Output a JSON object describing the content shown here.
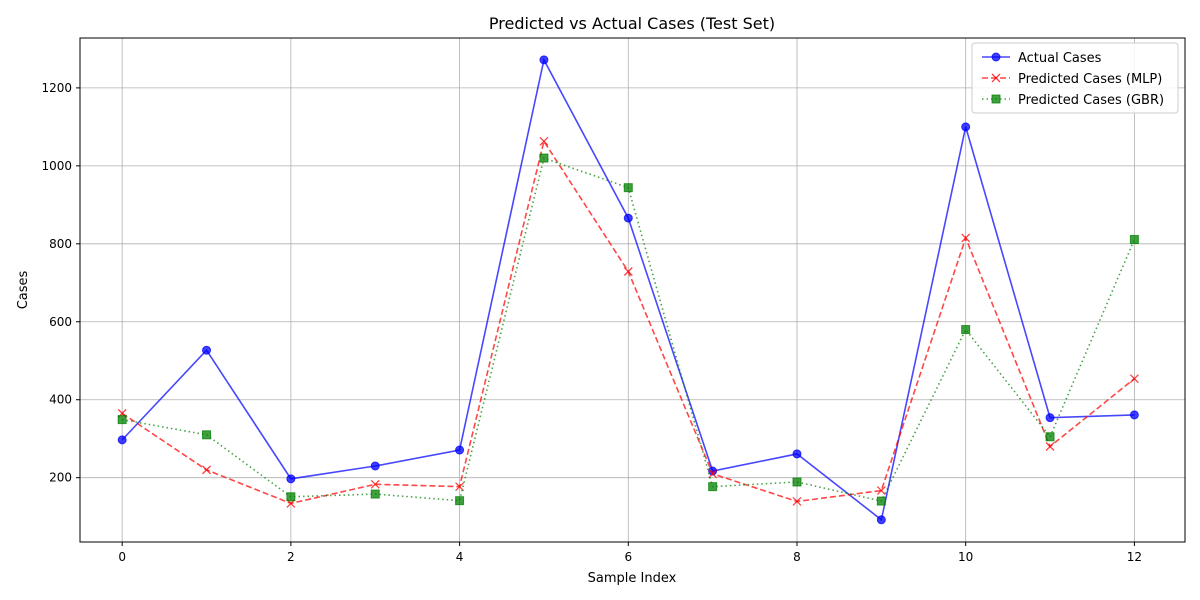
{
  "chart_data": {
    "type": "line",
    "title": "Predicted vs Actual Cases (Test Set)",
    "xlabel": "Sample Index",
    "ylabel": "Cases",
    "xlim": [
      -0.5,
      12.6
    ],
    "ylim": [
      35,
      1328
    ],
    "xticks": [
      0,
      2,
      4,
      6,
      8,
      10,
      12
    ],
    "yticks": [
      200,
      400,
      600,
      800,
      1000,
      1200
    ],
    "grid": true,
    "legend_position": "top-right",
    "x": [
      0,
      1,
      2,
      3,
      4,
      5,
      6,
      7,
      8,
      9,
      10,
      11,
      12
    ],
    "series": [
      {
        "name": "Actual Cases",
        "color": "#0000ff",
        "linestyle": "solid",
        "marker": "circle",
        "values": [
          297,
          527,
          197,
          230,
          271,
          1272,
          866,
          217,
          261,
          92,
          1100,
          354,
          361
        ]
      },
      {
        "name": "Predicted Cases (MLP)",
        "color": "#ff0000",
        "linestyle": "dashed",
        "marker": "x",
        "values": [
          365,
          220,
          134,
          183,
          177,
          1063,
          729,
          210,
          139,
          167,
          815,
          280,
          454
        ]
      },
      {
        "name": "Predicted Cases (GBR)",
        "color": "#008000",
        "linestyle": "dotted",
        "marker": "square",
        "values": [
          349,
          310,
          151,
          158,
          141,
          1020,
          944,
          177,
          189,
          140,
          580,
          305,
          811
        ]
      }
    ]
  }
}
